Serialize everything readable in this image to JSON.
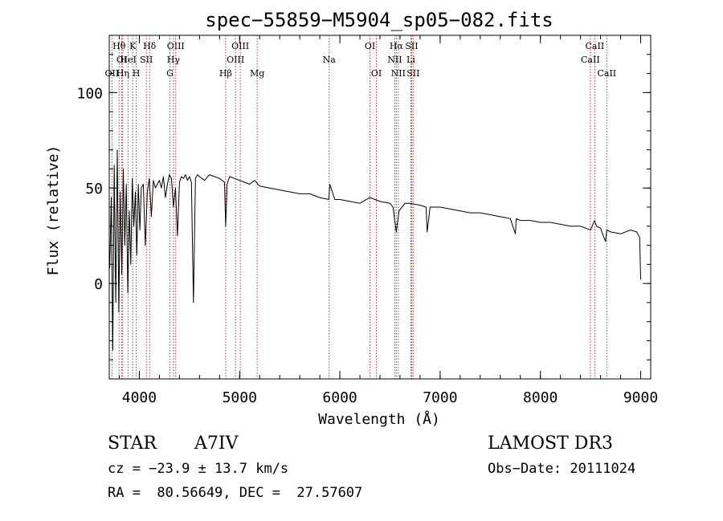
{
  "chart_data": {
    "type": "line",
    "title": "spec−55859−M5904_sp05−082.fits",
    "xlabel": "Wavelength (Å)",
    "ylabel": "Flux (relative)",
    "xlim": [
      3700,
      9100
    ],
    "ylim": [
      -50,
      130
    ],
    "x_ticks": [
      4000,
      5000,
      6000,
      7000,
      8000,
      9000
    ],
    "x_tick_labels": [
      "4000",
      "5000",
      "6000",
      "7000",
      "8000",
      "9000"
    ],
    "x_minor_step": 200,
    "y_ticks": [
      0,
      50,
      100
    ],
    "y_tick_labels": [
      "0",
      "50",
      "100"
    ],
    "y_minor_step": 10,
    "series": [
      {
        "name": "flux",
        "x": [
          3705,
          3720,
          3735,
          3750,
          3765,
          3780,
          3795,
          3810,
          3825,
          3840,
          3855,
          3870,
          3885,
          3900,
          3915,
          3930,
          3945,
          3960,
          3975,
          3990,
          4005,
          4020,
          4040,
          4060,
          4080,
          4100,
          4120,
          4140,
          4160,
          4180,
          4200,
          4220,
          4240,
          4260,
          4280,
          4300,
          4320,
          4340,
          4360,
          4380,
          4400,
          4420,
          4440,
          4460,
          4480,
          4500,
          4520,
          4540,
          4560,
          4580,
          4600,
          4650,
          4700,
          4750,
          4800,
          4850,
          4861,
          4875,
          4900,
          4950,
          5000,
          5050,
          5100,
          5150,
          5200,
          5300,
          5400,
          5500,
          5600,
          5700,
          5800,
          5890,
          5900,
          5950,
          6000,
          6100,
          6200,
          6300,
          6400,
          6500,
          6530,
          6563,
          6590,
          6650,
          6700,
          6800,
          6860,
          6870,
          6900,
          7000,
          7100,
          7200,
          7300,
          7400,
          7500,
          7600,
          7700,
          7750,
          7760,
          7800,
          7900,
          8000,
          8100,
          8200,
          8300,
          8400,
          8500,
          8540,
          8560,
          8600,
          8620,
          8650,
          8662,
          8700,
          8800,
          8900,
          8960,
          8990,
          9000
        ],
        "values": [
          8,
          45,
          -35,
          62,
          -10,
          70,
          -15,
          48,
          5,
          60,
          20,
          52,
          -5,
          38,
          10,
          55,
          30,
          48,
          15,
          52,
          28,
          50,
          52,
          20,
          48,
          55,
          35,
          54,
          50,
          52,
          54,
          50,
          56,
          45,
          52,
          57,
          55,
          40,
          50,
          25,
          53,
          56,
          55,
          57,
          54,
          56,
          53,
          -10,
          55,
          57,
          56,
          54,
          57,
          56,
          55,
          53,
          30,
          52,
          56,
          55,
          54,
          53,
          52,
          54,
          51,
          50,
          49,
          48,
          47,
          47,
          45,
          44,
          52,
          44,
          44,
          43,
          42,
          45,
          43,
          42,
          40,
          27,
          38,
          42,
          42,
          41,
          40,
          27,
          40,
          40,
          39,
          38,
          37,
          37,
          36,
          35,
          34,
          26,
          34,
          33,
          33,
          32,
          32,
          31,
          30,
          30,
          28,
          33,
          30,
          29,
          26,
          22,
          28,
          27,
          26,
          28,
          27,
          24,
          2
        ]
      }
    ],
    "lines": [
      {
        "name": "Hθ",
        "x": 3798,
        "row": 0
      },
      {
        "name": "OI",
        "x": 3825,
        "row": 1
      },
      {
        "name": "OII",
        "x": 3727,
        "row": 2
      },
      {
        "name": "K",
        "x": 3934,
        "row": 0
      },
      {
        "name": "HeI",
        "x": 3889,
        "row": 1
      },
      {
        "name": "Hη",
        "x": 3835,
        "row": 2
      },
      {
        "name": "Hδ",
        "x": 4102,
        "row": 0
      },
      {
        "name": "SII",
        "x": 4070,
        "row": 1
      },
      {
        "name": "H",
        "x": 3969,
        "row": 2
      },
      {
        "name": "OIII",
        "x": 4363,
        "row": 0
      },
      {
        "name": "Hγ",
        "x": 4340,
        "row": 1
      },
      {
        "name": "G",
        "x": 4305,
        "row": 2
      },
      {
        "name": "Hβ",
        "x": 4861,
        "row": 2
      },
      {
        "name": "OIII",
        "x": 5007,
        "row": 0
      },
      {
        "name": "OIII",
        "x": 4959,
        "row": 1
      },
      {
        "name": "Mg",
        "x": 5175,
        "row": 2
      },
      {
        "name": "Na",
        "x": 5893,
        "row": 1
      },
      {
        "name": "OI",
        "x": 6300,
        "row": 0
      },
      {
        "name": "OI",
        "x": 6364,
        "row": 2
      },
      {
        "name": "Hα",
        "x": 6563,
        "row": 0
      },
      {
        "name": "NII",
        "x": 6548,
        "row": 1
      },
      {
        "name": "NII",
        "x": 6583,
        "row": 2
      },
      {
        "name": "SII",
        "x": 6716,
        "row": 0
      },
      {
        "name": "Li",
        "x": 6708,
        "row": 1
      },
      {
        "name": "SII",
        "x": 6731,
        "row": 2
      },
      {
        "name": "CaII",
        "x": 8542,
        "row": 0
      },
      {
        "name": "CaII",
        "x": 8498,
        "row": 1
      },
      {
        "name": "CaII",
        "x": 8662,
        "row": 2
      }
    ]
  },
  "info": {
    "object_class": "STAR",
    "subclass": "A7IV",
    "survey": "LAMOST DR3",
    "cz": "cz = −23.9 ± 13.7 km/s",
    "obs_date": "Obs−Date: 20111024",
    "coords": "RA =  80.56649, DEC =  27.57607"
  }
}
